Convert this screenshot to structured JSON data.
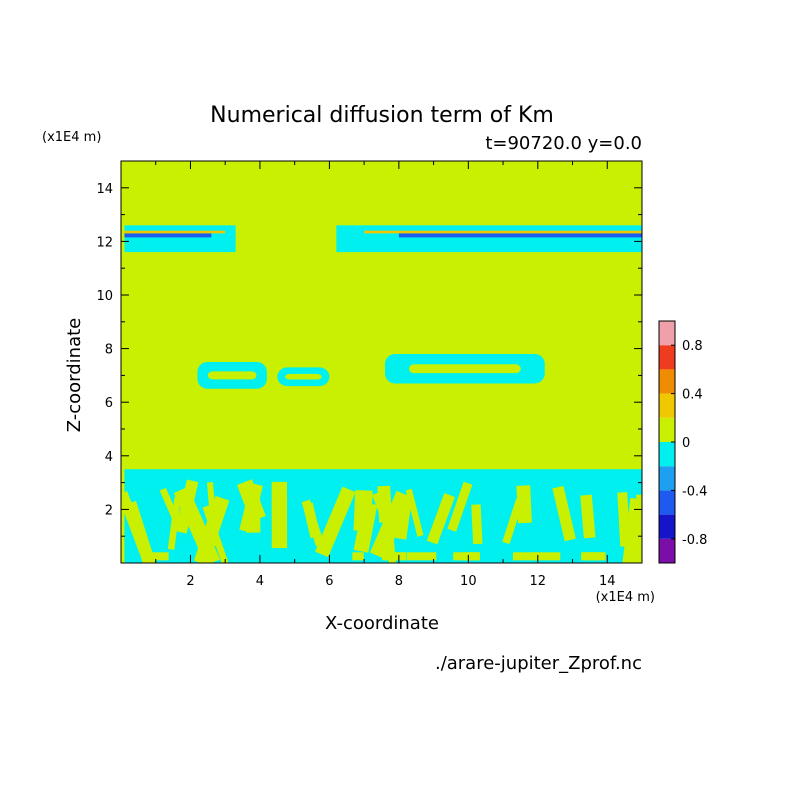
{
  "chart_data": {
    "type": "heatmap",
    "title": "Numerical diffusion term of Km",
    "subtitle": "t=90720.0 y=0.0",
    "xlabel": "X-coordinate",
    "ylabel": "Z-coordinate",
    "x_unit": "(x1E4 m)",
    "y_unit": "(x1E4 m)",
    "xlim": [
      0,
      15
    ],
    "ylim": [
      0,
      15
    ],
    "x_ticks": [
      2,
      4,
      6,
      8,
      10,
      12,
      14
    ],
    "y_ticks": [
      2,
      4,
      6,
      8,
      10,
      12,
      14
    ],
    "x_tick_labels": [
      "2",
      "4",
      "6",
      "8",
      "10",
      "12",
      "14"
    ],
    "y_tick_labels": [
      "2",
      "4",
      "6",
      "8",
      "10",
      "12",
      "14"
    ],
    "background_level": 0,
    "colorbar": {
      "levels": [
        -1.0,
        -0.8,
        -0.6,
        -0.4,
        -0.2,
        0.0,
        0.2,
        0.4,
        0.6,
        0.8,
        1.0
      ],
      "colors": [
        "#7b0da8",
        "#1414c8",
        "#1e5af0",
        "#1ea0f0",
        "#00f0f0",
        "#c8f000",
        "#f0c800",
        "#f08c00",
        "#f03c1e",
        "#f0a0a8"
      ],
      "tick_labels": [
        {
          "value": 0.8,
          "label": "0.8"
        },
        {
          "value": 0.4,
          "label": "0.4"
        },
        {
          "value": 0.0,
          "label": "0"
        },
        {
          "value": -0.4,
          "label": "-0.4"
        },
        {
          "value": -0.8,
          "label": "-0.8"
        }
      ]
    },
    "regions": [
      {
        "name": "upper-band-left",
        "level": -0.1,
        "x": [
          0.1,
          3.3
        ],
        "z": [
          11.6,
          12.6
        ]
      },
      {
        "name": "upper-band-right",
        "level": -0.1,
        "x": [
          6.2,
          15.0
        ],
        "z": [
          11.6,
          12.6
        ]
      },
      {
        "name": "upper-band-core-left",
        "level": -0.5,
        "x": [
          0.1,
          2.6
        ],
        "z": [
          12.15,
          12.3
        ]
      },
      {
        "name": "upper-band-core-right",
        "level": -0.5,
        "x": [
          8.0,
          15.0
        ],
        "z": [
          12.15,
          12.3
        ]
      },
      {
        "name": "upper-band-positive-left",
        "level": 0.3,
        "x": [
          0.1,
          3.0
        ],
        "z": [
          12.3,
          12.4
        ]
      },
      {
        "name": "upper-band-positive-right",
        "level": 0.3,
        "x": [
          7.0,
          15.0
        ],
        "z": [
          12.3,
          12.4
        ]
      },
      {
        "name": "mid-blob-left",
        "level": -0.1,
        "x": [
          2.2,
          4.2
        ],
        "z": [
          6.5,
          7.5
        ]
      },
      {
        "name": "mid-blob-center",
        "level": -0.1,
        "x": [
          4.5,
          6.0
        ],
        "z": [
          6.6,
          7.3
        ]
      },
      {
        "name": "mid-blob-right",
        "level": -0.1,
        "x": [
          7.6,
          12.2
        ],
        "z": [
          6.7,
          7.8
        ]
      },
      {
        "name": "lower-layer",
        "level": -0.1,
        "x": [
          0.1,
          15.0
        ],
        "z": [
          0.0,
          3.5
        ]
      }
    ]
  },
  "footer": {
    "filename": "./arare-jupiter_Zprof.nc"
  }
}
